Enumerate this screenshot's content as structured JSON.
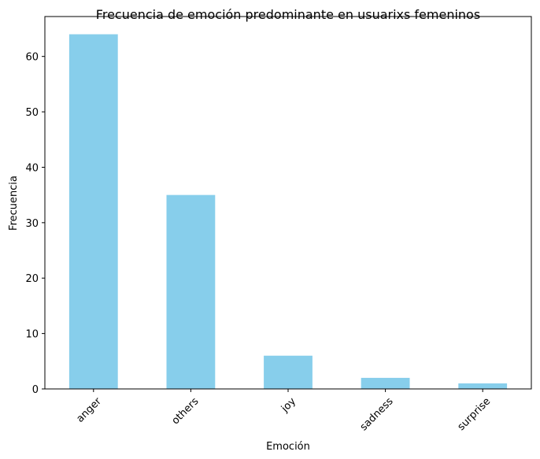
{
  "chart_data": {
    "type": "bar",
    "title": "Frecuencia de emoción predominante en usuarixs femeninos",
    "xlabel": "Emoción",
    "ylabel": "Frecuencia",
    "categories": [
      "anger",
      "others",
      "joy",
      "sadness",
      "surprise"
    ],
    "values": [
      64,
      35,
      6,
      2,
      1
    ],
    "ylim": [
      0,
      67.2
    ],
    "yticks": [
      0,
      10,
      20,
      30,
      40,
      50,
      60
    ],
    "bar_color": "#87CEEB",
    "grid": false,
    "legend": "none",
    "x_tick_rotation": "45°"
  }
}
